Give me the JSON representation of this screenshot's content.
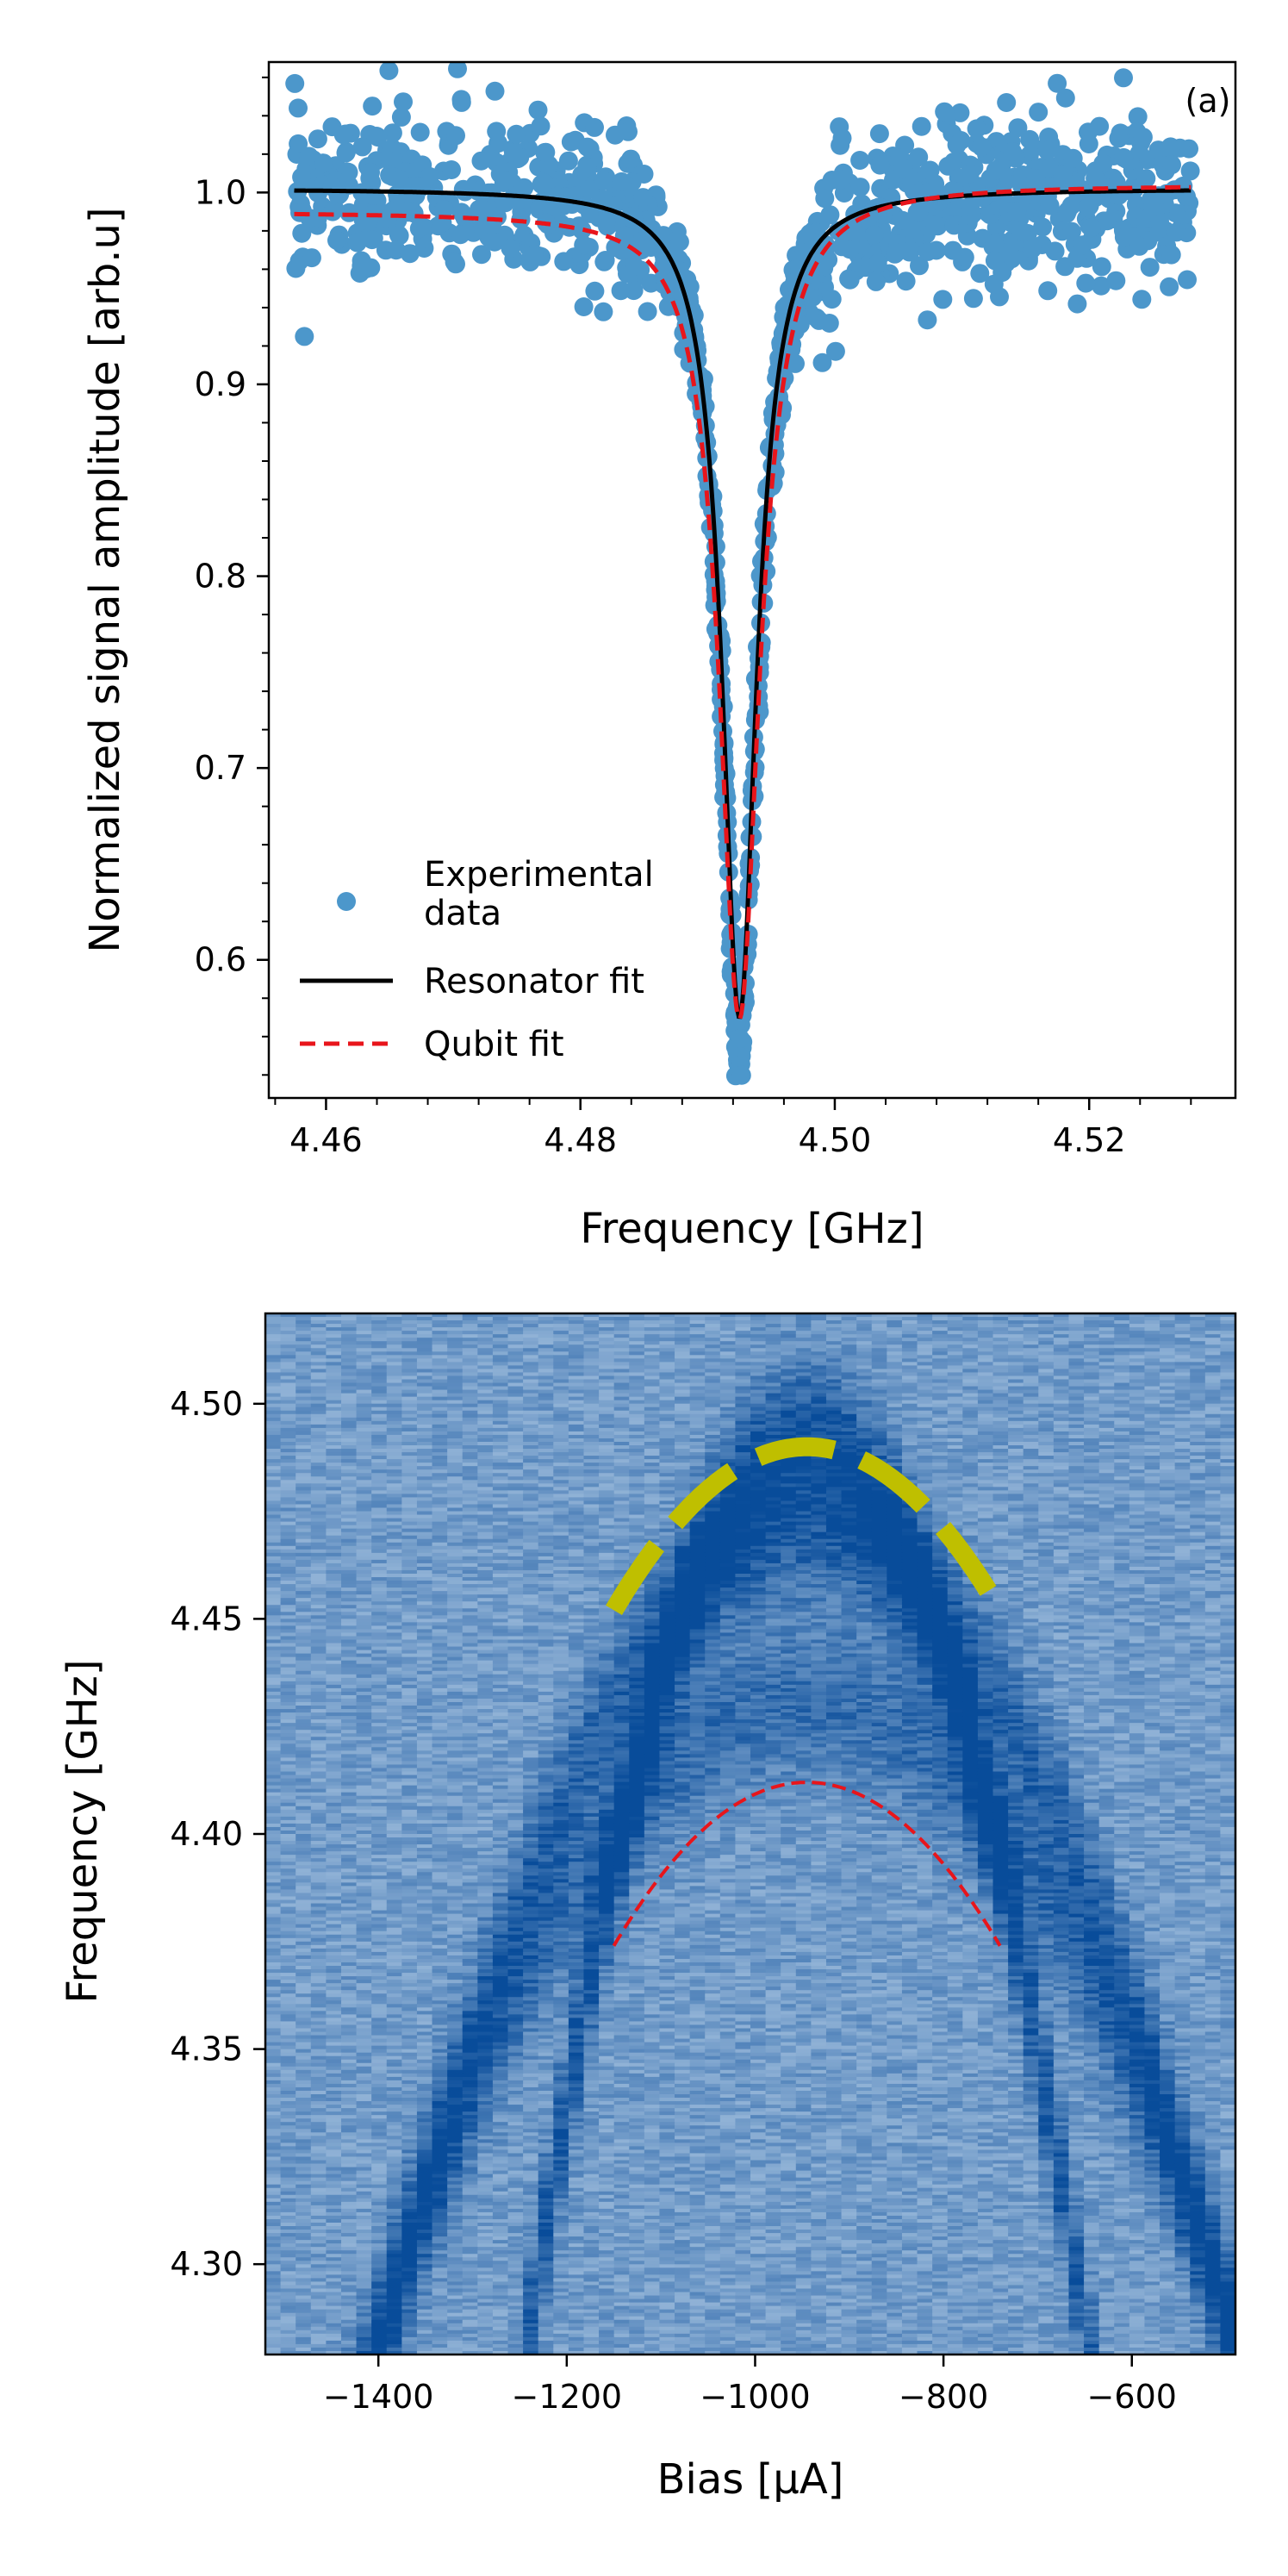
{
  "chart_data": [
    {
      "id": "panel_a",
      "type": "scatter",
      "panel_label": "(a)",
      "xlabel": "Frequency [GHz]",
      "ylabel": "Normalized signal amplitude [arb.u]",
      "xlim": [
        4.4555,
        4.5315
      ],
      "ylim": [
        0.528,
        1.068
      ],
      "xticks": [
        4.46,
        4.48,
        4.5,
        4.52
      ],
      "xtick_labels": [
        "4.46",
        "4.48",
        "4.50",
        "4.52"
      ],
      "yticks": [
        0.6,
        0.7,
        0.8,
        0.9,
        1.0
      ],
      "ytick_labels": [
        "0.6",
        "0.7",
        "0.8",
        "0.9",
        "1.0"
      ],
      "legend_position": "lower-left",
      "series": [
        {
          "name": "Experimental\ndata",
          "kind": "points",
          "color": "#4c97cb",
          "x_range": [
            4.4575,
            4.528
          ],
          "center": 4.4925,
          "min_value": 0.557,
          "half_width": 0.0017,
          "noise_amplitude": 0.025
        },
        {
          "name": "Resonator fit",
          "kind": "lorentzian",
          "color": "#000000",
          "style": "solid",
          "x_range": [
            4.4575,
            4.528
          ],
          "center": 4.4925,
          "baseline": 1.002,
          "depth": 0.432,
          "half_width": 0.00165
        },
        {
          "name": "Qubit fit",
          "kind": "lorentzian",
          "color": "#e8151b",
          "style": "dashed",
          "x_range": [
            4.4575,
            4.528
          ],
          "center": 4.4925,
          "baseline_left": 0.99,
          "baseline_right": 1.004,
          "depth": 0.428,
          "half_width": 0.0019
        }
      ]
    },
    {
      "id": "panel_b",
      "type": "heatmap",
      "xlabel": "Bias [μA]",
      "ylabel": "Frequency [GHz]",
      "xlim": [
        -1520,
        -490
      ],
      "ylim": [
        4.279,
        4.521
      ],
      "xticks": [
        -1400,
        -1200,
        -1000,
        -800,
        -600
      ],
      "xtick_labels": [
        "−1400",
        "−1200",
        "−1000",
        "−800",
        "−600"
      ],
      "yticks": [
        4.3,
        4.35,
        4.4,
        4.45,
        4.5
      ],
      "ytick_labels": [
        "4.30",
        "4.35",
        "4.40",
        "4.45",
        "4.50"
      ],
      "colormap": [
        "#d4e5f4",
        "#084c9a"
      ],
      "overlays": [
        {
          "name": "yellow dashed arc",
          "color": "#bfbf00",
          "style": "dashed",
          "bias_range": [
            -1150,
            -740
          ],
          "vertex_bias": -945,
          "vertex_frequency": 4.49,
          "end_frequency": 4.452
        },
        {
          "name": "red dashed arc",
          "color": "#e8151b",
          "style": "dashed",
          "bias_range": [
            -1150,
            -740
          ],
          "vertex_bias": -945,
          "vertex_frequency": 4.412,
          "end_frequency": 4.374
        }
      ],
      "dark_bands": [
        {
          "vertex_bias": -945,
          "vertex_frequency": 4.493,
          "half_span_bias": 330,
          "drop_frequency": 0.26,
          "strength": 0.45
        },
        {
          "vertex_bias": -945,
          "vertex_frequency": 4.47,
          "half_span_bias": 540,
          "drop_frequency": 0.27,
          "strength": 0.35
        },
        {
          "vertex_bias": -945,
          "vertex_frequency": 4.43,
          "half_span_bias": 740,
          "drop_frequency": 0.39,
          "strength": 0.3
        }
      ]
    }
  ]
}
